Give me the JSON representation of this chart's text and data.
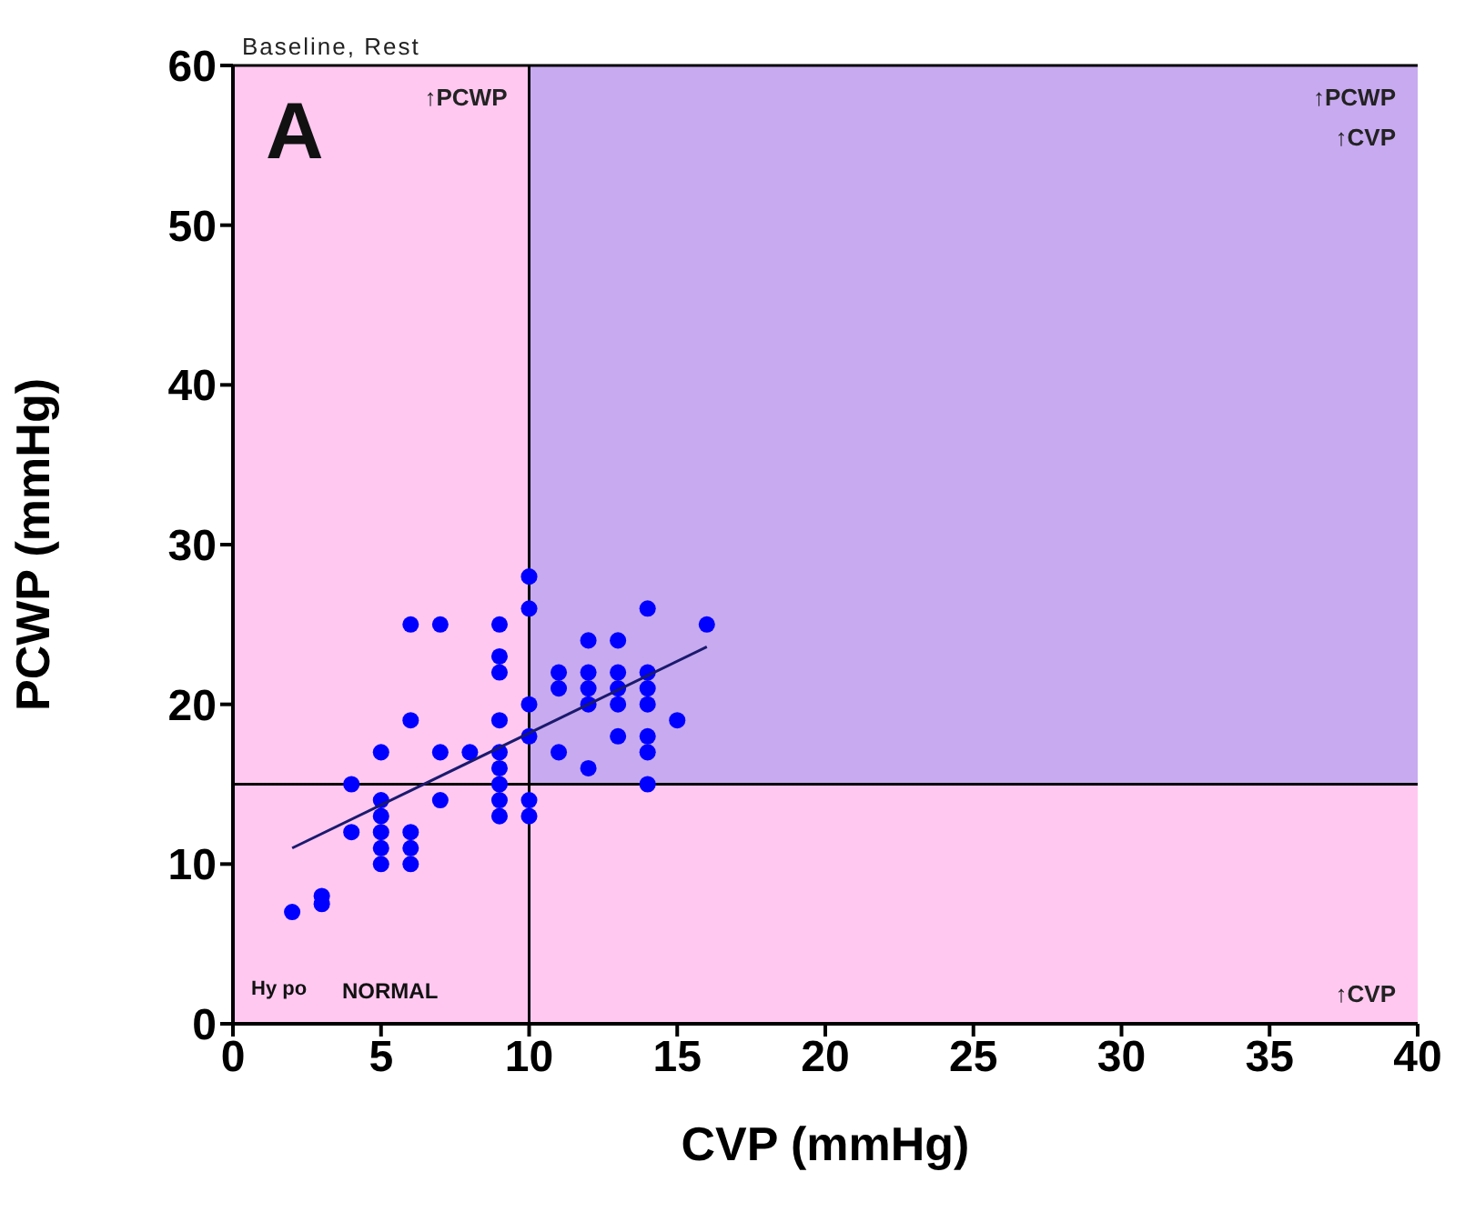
{
  "chart_data": {
    "type": "scatter",
    "title": "Baseline, Rest",
    "xlabel": "CVP (mmHg)",
    "ylabel": "PCWP (mmHg)",
    "xlim": [
      0,
      40
    ],
    "xticks": [
      0,
      5,
      10,
      15,
      20,
      25,
      30,
      35,
      40
    ],
    "ylim": [
      0,
      60
    ],
    "yticks": [
      0,
      10,
      20,
      30,
      40,
      50,
      60
    ],
    "marker": "circle",
    "annotations": [
      "A",
      "Hy po",
      "NORMAL"
    ],
    "bands": [
      {
        "axis": "x",
        "from": 0,
        "to": 10,
        "color": "#ffc8f0",
        "label": "↑PCWP"
      },
      {
        "axis": "x",
        "from": 10,
        "to": 40,
        "color": "#c8aaf0",
        "label": "↑PCWP\n↑CVP"
      },
      {
        "axis": "y",
        "from": 0,
        "to": 15,
        "color": "#ffc8f0",
        "label": "↑CVP"
      }
    ],
    "ref_lines": [
      {
        "axis": "x",
        "value": 10,
        "label": null,
        "color": "#000000"
      },
      {
        "axis": "y",
        "value": 15,
        "label": null,
        "color": "#000000"
      }
    ],
    "series": [
      {
        "color": "#0000ff",
        "x": [
          2,
          3,
          3,
          4,
          4,
          5,
          5,
          5,
          5,
          5,
          5,
          6,
          6,
          6,
          6,
          6,
          7,
          7,
          7,
          8,
          9,
          9,
          9,
          9,
          9,
          9,
          9,
          9,
          9,
          10,
          10,
          10,
          10,
          10,
          10,
          11,
          11,
          12,
          12,
          12,
          12,
          13,
          13,
          13,
          13,
          13,
          14,
          14,
          14,
          14,
          14,
          14,
          14,
          15,
          16,
          12,
          11
        ],
        "values": [
          7,
          7.5,
          8,
          12,
          15,
          10,
          11,
          12,
          13,
          14,
          17,
          10,
          11,
          12,
          19,
          25,
          25,
          14,
          17,
          17,
          13,
          14,
          15,
          16,
          17,
          19,
          22,
          23,
          25,
          13,
          14,
          18,
          20,
          26,
          28,
          17,
          22,
          16,
          20,
          22,
          24,
          18,
          20,
          21,
          22,
          24,
          15,
          17,
          18,
          20,
          21,
          22,
          26,
          19,
          25,
          21,
          21
        ]
      },
      {
        "type": "line",
        "marker": "none",
        "color": "#1a1a6e",
        "x": [
          2,
          16
        ],
        "values": [
          11,
          23.6
        ]
      }
    ]
  }
}
